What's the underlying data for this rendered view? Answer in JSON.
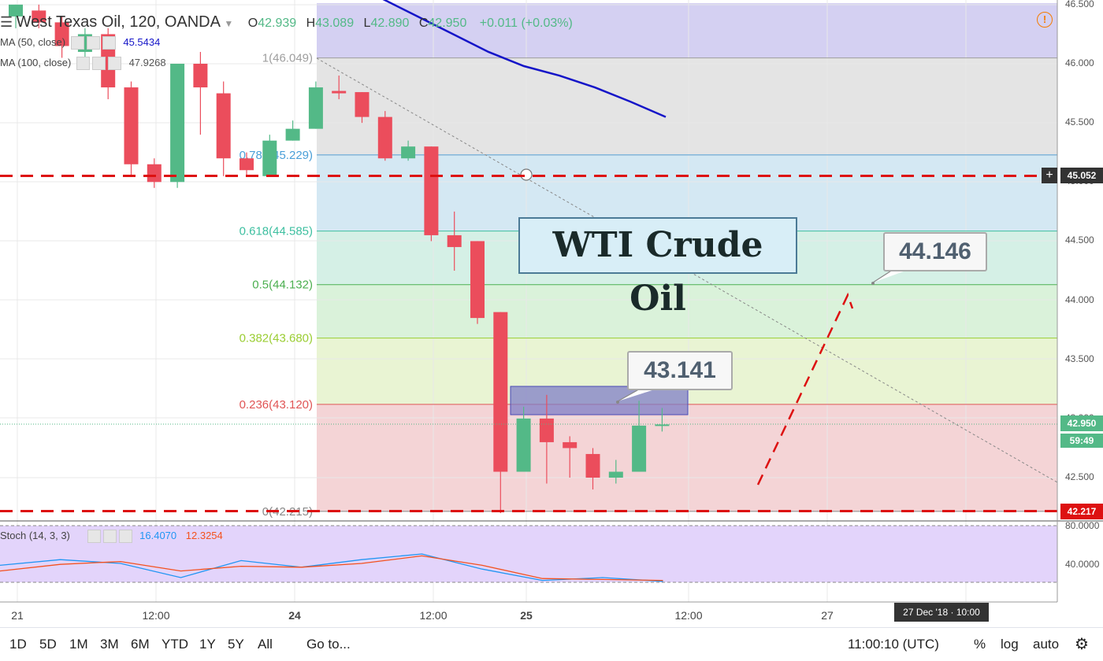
{
  "header": {
    "symbol": "West Texas Oil, 120, OANDA",
    "open_label": "O",
    "open": "42.939",
    "high_label": "H",
    "high": "43.089",
    "low_label": "L",
    "low": "42.890",
    "close_label": "C",
    "close": "42.950",
    "change": "+0.011 (+0.03%)"
  },
  "indicators": {
    "ma50_label": "MA (50, close)",
    "ma50_value": "45.5434",
    "ma100_label": "MA (100, close)",
    "ma100_value": "47.9268",
    "stoch_label": "Stoch (14, 3, 3)",
    "stoch_k": "16.4070",
    "stoch_d": "12.3254"
  },
  "annotations": {
    "title_box": "WTI Crude Oil",
    "callout_1": "43.141",
    "callout_2": "44.146"
  },
  "price_axis": {
    "ticks": [
      "46.500",
      "46.000",
      "45.500",
      "45.000",
      "44.500",
      "44.000",
      "43.500",
      "43.000",
      "42.500"
    ],
    "tag_level": "45.052",
    "tag_last": "42.950",
    "tag_countdown": "59:49",
    "tag_low": "42.217"
  },
  "stoch_axis": {
    "ticks": [
      "80.0000",
      "40.0000"
    ]
  },
  "time_axis": {
    "ticks": [
      "21",
      "12:00",
      "24",
      "12:00",
      "25",
      "12:00",
      "27"
    ],
    "cursor_label": "27 Dec '18 · 10:00"
  },
  "bottom_bar": {
    "ranges": [
      "1D",
      "5D",
      "1M",
      "3M",
      "6M",
      "YTD",
      "1Y",
      "5Y",
      "All"
    ],
    "goto": "Go to...",
    "clock": "11:00:10 (UTC)",
    "percent": "%",
    "log": "log",
    "auto": "auto"
  },
  "colors": {
    "bull": "#53b987",
    "bear": "#eb4d5c",
    "ma50": "#1515c8",
    "level_line": "#dd1111",
    "stoch_k": "#2196f3",
    "stoch_d": "#f4511e"
  },
  "chart_data": {
    "type": "candlestick",
    "symbol": "West Texas Oil, 120, OANDA",
    "y_range": [
      42.1,
      46.5
    ],
    "fib_levels": [
      {
        "label": "1(46.049)",
        "value": 46.049,
        "color": "#9e9e9e"
      },
      {
        "label": "0.786(45.229)",
        "value": 45.229,
        "color": "#4a9fd8"
      },
      {
        "label": "0.618(44.585)",
        "value": 44.585,
        "color": "#3dbfa0"
      },
      {
        "label": "0.5(44.132)",
        "value": 44.132,
        "color": "#4caf50"
      },
      {
        "label": "0.382(43.680)",
        "value": 43.68,
        "color": "#9acd32"
      },
      {
        "label": "0.236(43.120)",
        "value": 43.12,
        "color": "#e05555"
      },
      {
        "label": "0(42.215)",
        "value": 42.215,
        "color": "#888888"
      }
    ],
    "horizontal_levels": [
      45.052,
      42.217
    ],
    "candles": [
      {
        "o": 46.4,
        "h": 46.5,
        "l": 46.3,
        "c": 46.5
      },
      {
        "o": 46.45,
        "h": 46.5,
        "l": 46.3,
        "c": 46.35
      },
      {
        "o": 46.35,
        "h": 46.4,
        "l": 46.05,
        "c": 46.15
      },
      {
        "o": 46.1,
        "h": 46.3,
        "l": 46.0,
        "c": 46.25
      },
      {
        "o": 46.25,
        "h": 46.3,
        "l": 45.7,
        "c": 45.8
      },
      {
        "o": 45.8,
        "h": 45.85,
        "l": 45.05,
        "c": 45.15
      },
      {
        "o": 45.15,
        "h": 45.2,
        "l": 44.95,
        "c": 45.0
      },
      {
        "o": 45.0,
        "h": 46.0,
        "l": 44.95,
        "c": 46.0
      },
      {
        "o": 46.0,
        "h": 46.1,
        "l": 45.4,
        "c": 45.8
      },
      {
        "o": 45.75,
        "h": 45.85,
        "l": 45.05,
        "c": 45.2
      },
      {
        "o": 45.2,
        "h": 45.25,
        "l": 45.05,
        "c": 45.1
      },
      {
        "o": 45.05,
        "h": 45.4,
        "l": 45.05,
        "c": 45.35
      },
      {
        "o": 45.35,
        "h": 45.52,
        "l": 45.35,
        "c": 45.45
      },
      {
        "o": 45.45,
        "h": 45.85,
        "l": 45.45,
        "c": 45.8
      },
      {
        "o": 45.77,
        "h": 45.9,
        "l": 45.7,
        "c": 45.75
      },
      {
        "o": 45.76,
        "h": 45.76,
        "l": 45.5,
        "c": 45.55
      },
      {
        "o": 45.55,
        "h": 45.6,
        "l": 45.18,
        "c": 45.2
      },
      {
        "o": 45.2,
        "h": 45.35,
        "l": 45.18,
        "c": 45.3
      },
      {
        "o": 45.3,
        "h": 45.3,
        "l": 44.5,
        "c": 44.55
      },
      {
        "o": 44.55,
        "h": 44.75,
        "l": 44.25,
        "c": 44.45
      },
      {
        "o": 44.5,
        "h": 44.5,
        "l": 43.8,
        "c": 43.85
      },
      {
        "o": 43.9,
        "h": 43.9,
        "l": 42.2,
        "c": 42.55
      },
      {
        "o": 42.55,
        "h": 43.1,
        "l": 42.55,
        "c": 43.0
      },
      {
        "o": 43.0,
        "h": 43.2,
        "l": 42.45,
        "c": 42.8
      },
      {
        "o": 42.8,
        "h": 42.85,
        "l": 42.5,
        "c": 42.75
      },
      {
        "o": 42.7,
        "h": 42.75,
        "l": 42.4,
        "c": 42.5
      },
      {
        "o": 42.5,
        "h": 42.65,
        "l": 42.45,
        "c": 42.55
      },
      {
        "o": 42.55,
        "h": 43.15,
        "l": 42.55,
        "c": 42.94
      },
      {
        "o": 42.939,
        "h": 43.089,
        "l": 42.89,
        "c": 42.95
      }
    ],
    "ma50": [
      46.6,
      46.3,
      46.0,
      45.9,
      45.8,
      45.6,
      45.55
    ],
    "stochastic": {
      "k": [
        38,
        44,
        40,
        25,
        43,
        36,
        44,
        50,
        34,
        22,
        25,
        21
      ],
      "d": [
        32,
        39,
        42,
        32,
        37,
        36,
        40,
        48,
        38,
        24,
        23,
        22
      ]
    },
    "target_projection": [
      42.45,
      44.05
    ]
  }
}
